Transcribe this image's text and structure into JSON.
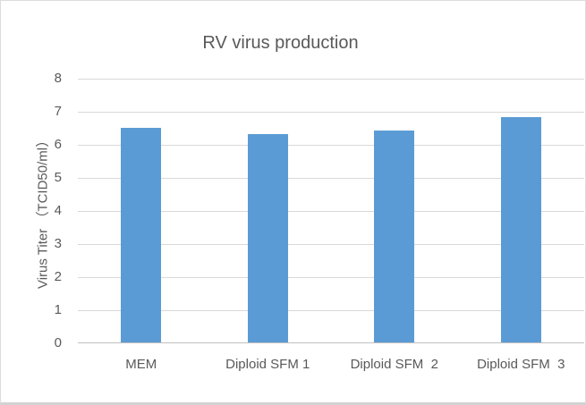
{
  "window": {
    "background_color": "#FFFFFF",
    "border_color": "#DCDCDC"
  },
  "chart_data": {
    "type": "bar",
    "title": "RV virus production",
    "categories": [
      "MEM",
      "Diploid SFM 1",
      "Diploid SFM  2",
      "Diploid SFM  3"
    ],
    "values": [
      6.5,
      6.3,
      6.4,
      6.8
    ],
    "xlabel": "",
    "ylabel": "Virus Titer （TCID50/ml）",
    "ylim": [
      0,
      8
    ],
    "yticks": [
      0,
      1,
      2,
      3,
      4,
      5,
      6,
      7,
      8
    ],
    "grid": true,
    "legend_position": "none",
    "bar_color": "#5B9BD5",
    "gridline_color": "#D9D9D9",
    "axis_line_color": "#BFBFBF",
    "text_color": "#595959"
  }
}
